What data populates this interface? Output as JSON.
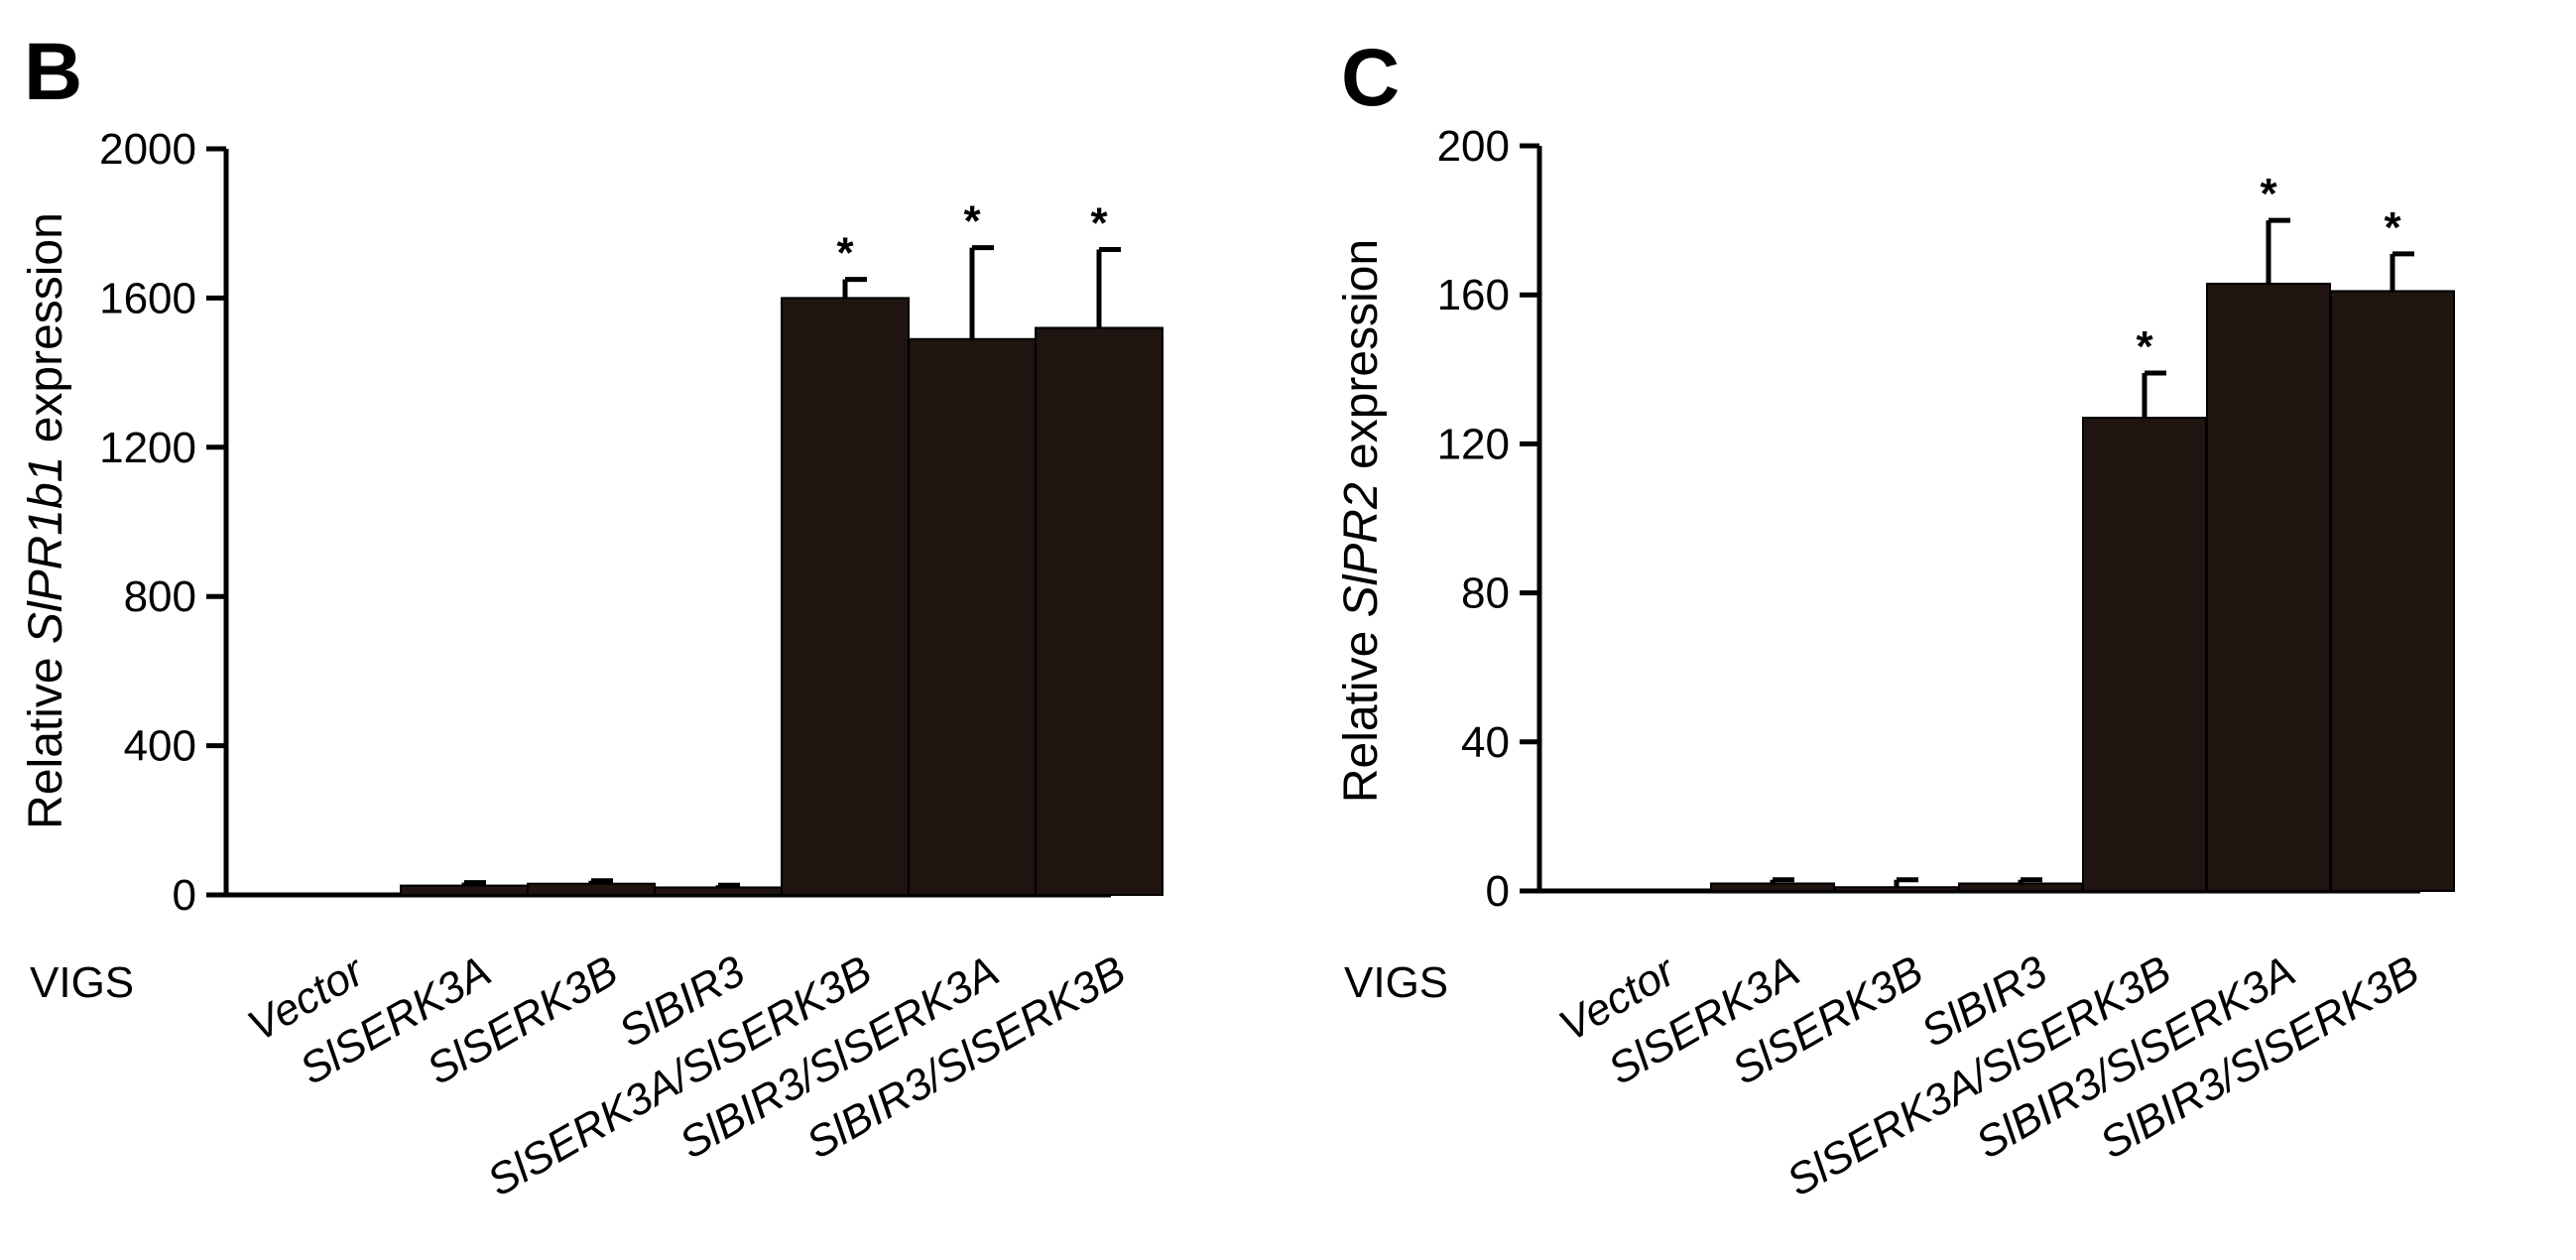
{
  "colors": {
    "bar": "#1f1410",
    "axis": "#000000",
    "background": "#ffffff"
  },
  "row_label": "VIGS",
  "chart_data": [
    {
      "panel_label": "B",
      "type": "bar",
      "ylabel_prefix": "Relative ",
      "ylabel_gene": "SlPR1b1",
      "ylabel_suffix": " expression",
      "categories": [
        "Vector",
        "SlSERK3A",
        "SlSERK3B",
        "SlBIR3",
        "SlSERK3A/SlSERK3B",
        "SlBIR3/SlSERK3A",
        "SlBIR3/SlSERK3B"
      ],
      "values": [
        0,
        25,
        30,
        20,
        1600,
        1490,
        1520
      ],
      "errors": [
        0,
        8,
        8,
        6,
        50,
        245,
        210
      ],
      "significance": [
        "",
        "",
        "",
        "",
        "*",
        "*",
        "*"
      ],
      "ylim": [
        0,
        2000
      ],
      "yticks": [
        0,
        400,
        800,
        1200,
        1600,
        2000
      ]
    },
    {
      "panel_label": "C",
      "type": "bar",
      "ylabel_prefix": "Relative ",
      "ylabel_gene": "SlPR2",
      "ylabel_suffix": " expression",
      "categories": [
        "Vector",
        "SlSERK3A",
        "SlSERK3B",
        "SlBIR3",
        "SlSERK3A/SlSERK3B",
        "SlBIR3/SlSERK3A",
        "SlBIR3/SlSERK3B"
      ],
      "values": [
        0,
        2,
        1,
        2,
        127,
        163,
        161
      ],
      "errors": [
        0,
        1,
        2,
        1,
        12,
        17,
        10
      ],
      "significance": [
        "",
        "",
        "",
        "",
        "*",
        "*",
        "*"
      ],
      "ylim": [
        0,
        200
      ],
      "yticks": [
        0,
        40,
        80,
        120,
        160,
        200
      ]
    }
  ]
}
